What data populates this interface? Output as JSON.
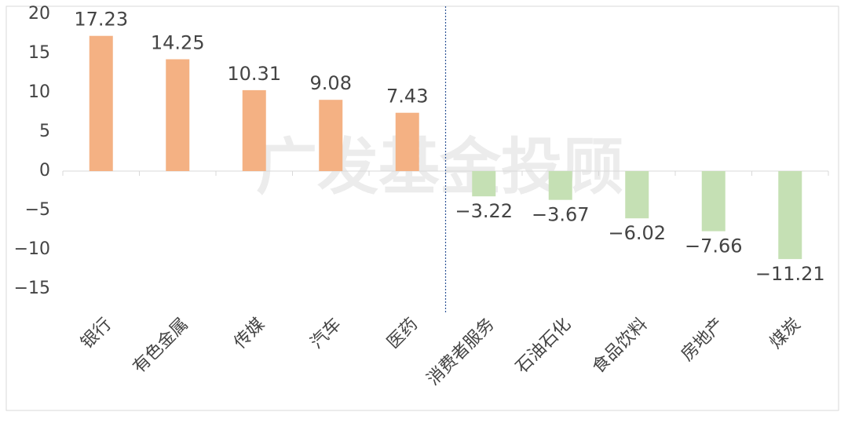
{
  "chart_data": {
    "type": "bar",
    "watermark": "广发基金投顾",
    "categories": [
      "银行",
      "有色金属",
      "传媒",
      "汽车",
      "医药",
      "消费者服务",
      "石油石化",
      "食品饮料",
      "房地产",
      "煤炭"
    ],
    "values": [
      17.23,
      14.25,
      10.31,
      9.08,
      7.43,
      -3.22,
      -3.67,
      -6.02,
      -7.66,
      -11.21
    ],
    "value_labels": [
      "17.23",
      "14.25",
      "10.31",
      "9.08",
      "7.43",
      "−3.22",
      "−3.67",
      "−6.02",
      "−7.66",
      "−11.21"
    ],
    "positive_color": "#f4b183",
    "negative_color": "#c5e0b4",
    "ylim": [
      -17,
      21
    ],
    "yticks": [
      {
        "value": -15,
        "label": "−15"
      },
      {
        "value": -10,
        "label": "−10"
      },
      {
        "value": -5,
        "label": "−5"
      },
      0,
      5,
      10,
      15,
      20
    ],
    "divider": true,
    "divider_color": "#2f5597"
  }
}
